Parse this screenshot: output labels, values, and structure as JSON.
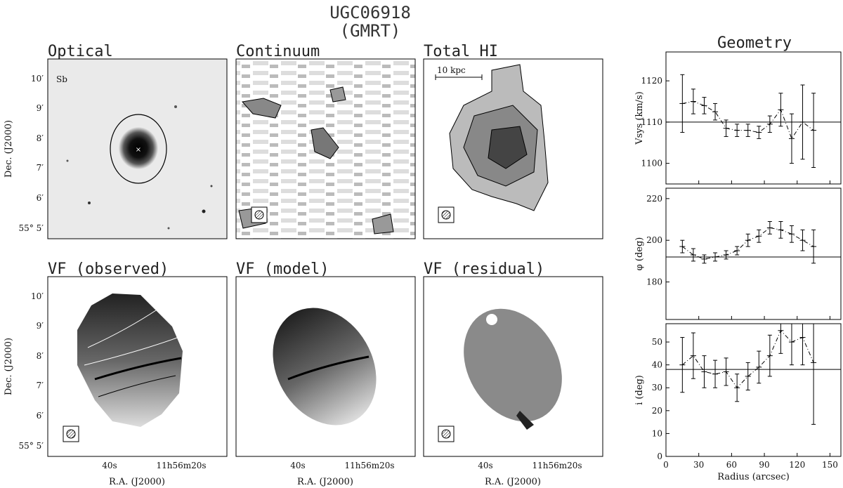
{
  "header": {
    "title": "UGC06918",
    "subtitle": "(GMRT)"
  },
  "panels": {
    "optical": {
      "title": "Optical",
      "morph": "Sb"
    },
    "continuum": {
      "title": "Continuum"
    },
    "total_hi": {
      "title": "Total HI",
      "scalebar": "10 kpc"
    },
    "vf_obs": {
      "title": "VF (observed)"
    },
    "vf_model": {
      "title": "VF (model)"
    },
    "vf_res": {
      "title": "VF (residual)"
    }
  },
  "sky_axes": {
    "dec_label": "Dec. (J2000)",
    "ra_label": "R.A. (J2000)",
    "dec_ticks": [
      "10′",
      "9′",
      "8′",
      "7′",
      "6′",
      "55° 5′"
    ],
    "ra_ticks": [
      "40s",
      "11h56m20s"
    ]
  },
  "geometry_title": "Geometry",
  "chart_data": [
    {
      "type": "scatter",
      "ylabel": "Vsys (km/s)",
      "ylim": [
        1095,
        1127
      ],
      "yticks": [
        1100,
        1110,
        1120
      ],
      "xlim": [
        0,
        160
      ],
      "ref_y": 1110,
      "x": [
        15,
        25,
        35,
        45,
        55,
        65,
        75,
        85,
        95,
        105,
        115,
        125,
        135
      ],
      "y": [
        1114.5,
        1115,
        1114,
        1112.5,
        1108.5,
        1108,
        1108,
        1107.5,
        1109.5,
        1113,
        1106,
        1110,
        1108
      ],
      "err": [
        7,
        3,
        2,
        2,
        2,
        1.5,
        1.5,
        1.5,
        2,
        4,
        6,
        9,
        9
      ]
    },
    {
      "type": "scatter",
      "ylabel": "φ (deg)",
      "ylim": [
        162,
        225
      ],
      "yticks": [
        180,
        200,
        220
      ],
      "xlim": [
        0,
        160
      ],
      "ref_y": 192,
      "x": [
        15,
        25,
        35,
        45,
        55,
        65,
        75,
        85,
        95,
        105,
        115,
        125,
        135
      ],
      "y": [
        197,
        193,
        191,
        192,
        193,
        195,
        200,
        202,
        206,
        205,
        203,
        200,
        197
      ],
      "err": [
        3,
        3,
        2,
        2,
        2,
        2,
        3,
        3,
        3,
        4,
        4,
        5,
        8
      ]
    },
    {
      "type": "scatter",
      "ylabel": "i (deg)",
      "ylim": [
        0,
        58
      ],
      "yticks": [
        0,
        10,
        20,
        30,
        40,
        50
      ],
      "xlim": [
        0,
        160
      ],
      "xticks": [
        0,
        30,
        60,
        90,
        120,
        150
      ],
      "xlabel": "Radius (arcsec)",
      "ref_y": 38,
      "x": [
        15,
        25,
        35,
        45,
        55,
        65,
        75,
        85,
        95,
        105,
        115,
        125,
        135
      ],
      "y": [
        40,
        44,
        37,
        36,
        37,
        30,
        35,
        39,
        44,
        55,
        50,
        52,
        41
      ],
      "err": [
        12,
        10,
        7,
        6,
        6,
        6,
        6,
        7,
        9,
        10,
        10,
        12,
        27
      ]
    }
  ]
}
